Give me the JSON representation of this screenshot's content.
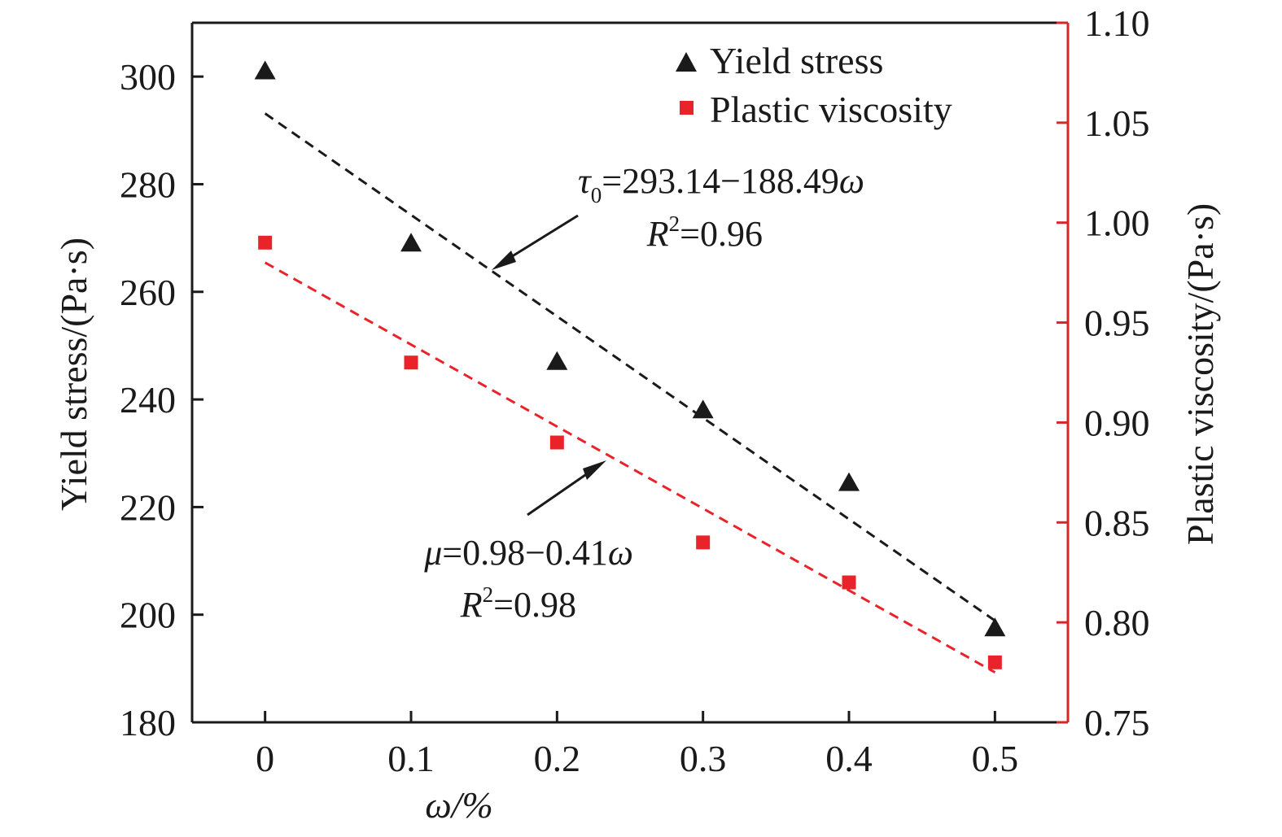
{
  "chart_data": {
    "type": "scatter",
    "title": "",
    "x": [
      0,
      0.1,
      0.2,
      0.3,
      0.4,
      0.5
    ],
    "x_ticks": [
      0,
      0.1,
      0.2,
      0.3,
      0.4,
      0.5
    ],
    "x_tick_labels": [
      "0",
      "0.1",
      "0.2",
      "0.3",
      "0.4",
      "0.5"
    ],
    "xlim": [
      -0.05,
      0.55
    ],
    "xlabel": "ω/%",
    "y_left": {
      "label": "Yield stress/(Pa·s)",
      "lim": [
        180,
        310
      ],
      "ticks": [
        180,
        200,
        220,
        240,
        260,
        280,
        300
      ],
      "tick_labels": [
        "180",
        "200",
        "220",
        "240",
        "260",
        "280",
        "300"
      ],
      "color": "#1a1a1a"
    },
    "y_right": {
      "label": "Plastic viscosity/(Pa·s)",
      "lim": [
        0.75,
        1.1
      ],
      "ticks": [
        0.75,
        0.8,
        0.85,
        0.9,
        0.95,
        1.0,
        1.05,
        1.1
      ],
      "tick_labels": [
        "0.75",
        "0.80",
        "0.85",
        "0.90",
        "0.95",
        "1.00",
        "1.05",
        "1.10"
      ],
      "color": "#d62728"
    },
    "grid": false,
    "legend_position": "top-right",
    "series": [
      {
        "name": "Yield stress",
        "axis": "left",
        "marker": "triangle",
        "color": "#1a1a1a",
        "values": [
          301,
          269,
          247,
          238,
          224.5,
          197.5
        ],
        "fit": {
          "intercept": 293.14,
          "slope": -188.49,
          "color": "#1a1a1a"
        }
      },
      {
        "name": "Plastic viscosity",
        "axis": "right",
        "marker": "square",
        "color": "#e8242a",
        "values": [
          0.99,
          0.93,
          0.89,
          0.84,
          0.82,
          0.78
        ],
        "fit": {
          "intercept": 0.98,
          "slope": -0.41,
          "color": "#e8242a"
        }
      }
    ],
    "annotations": [
      {
        "id": "yield",
        "symbol": "τ",
        "subscript": "0",
        "equation": "=293.14−188.49",
        "var": "ω",
        "r2_symbol": "R",
        "r2_sup": "2",
        "r2_value": "=0.96"
      },
      {
        "id": "visc",
        "symbol": "μ",
        "subscript": "",
        "equation": "=0.98−0.41",
        "var": "ω",
        "r2_symbol": "R",
        "r2_sup": "2",
        "r2_value": "=0.98"
      }
    ]
  }
}
